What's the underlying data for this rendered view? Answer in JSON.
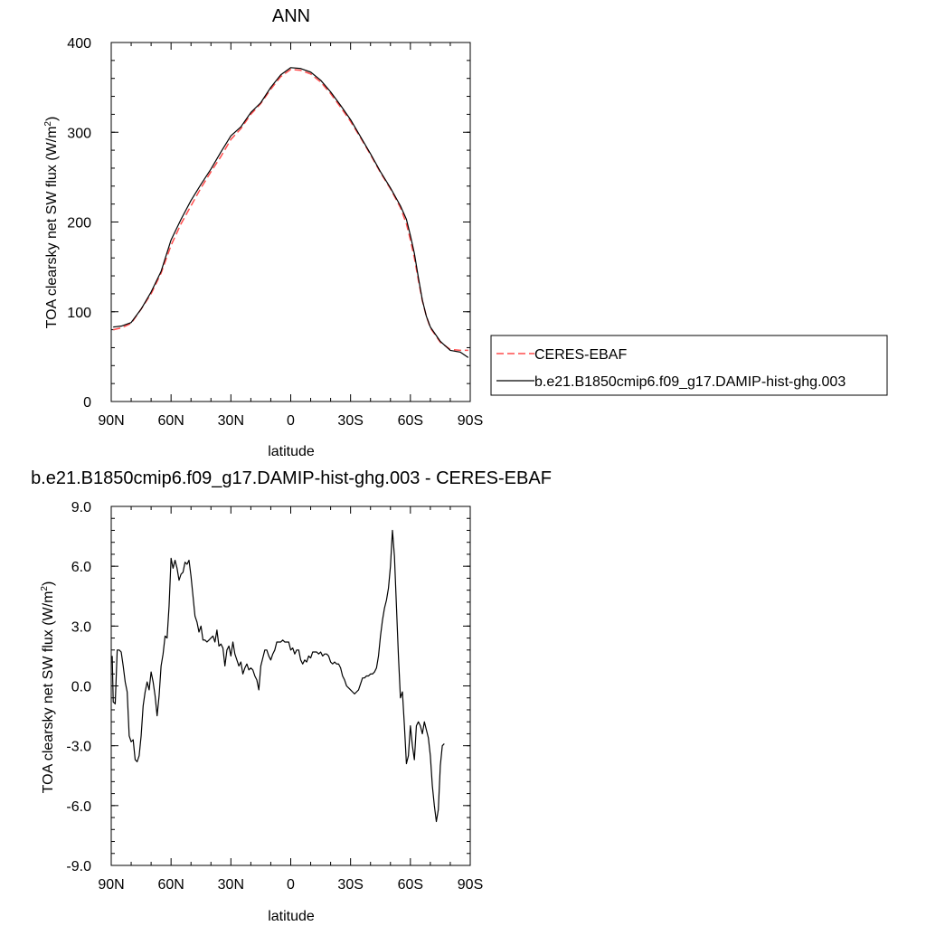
{
  "chart_data": [
    {
      "type": "line",
      "title": "ANN",
      "xlabel": "latitude",
      "ylabel": "TOA clearsky net SW flux (W/m",
      "ylabel_sup": "2",
      "ylabel_end": ")",
      "xlim": [
        90,
        -90
      ],
      "ylim": [
        0,
        400
      ],
      "xticks": [
        {
          "v": 90,
          "label": "90N"
        },
        {
          "v": 60,
          "label": "60N"
        },
        {
          "v": 30,
          "label": "30N"
        },
        {
          "v": 0,
          "label": "0"
        },
        {
          "v": -30,
          "label": "30S"
        },
        {
          "v": -60,
          "label": "60S"
        },
        {
          "v": -90,
          "label": "90S"
        }
      ],
      "yticks": [
        {
          "v": 0,
          "label": "0"
        },
        {
          "v": 100,
          "label": "100"
        },
        {
          "v": 200,
          "label": "200"
        },
        {
          "v": 300,
          "label": "300"
        },
        {
          "v": 400,
          "label": "400"
        }
      ],
      "legend_position": "right",
      "series": [
        {
          "name": "CERES-EBAF",
          "color": "#ff4d4d",
          "dash": true,
          "points": [
            [
              89,
              80
            ],
            [
              85,
              82
            ],
            [
              80,
              87
            ],
            [
              75,
              103
            ],
            [
              70,
              120
            ],
            [
              65,
              143
            ],
            [
              60,
              174
            ],
            [
              55,
              198
            ],
            [
              50,
              218
            ],
            [
              45,
              238
            ],
            [
              40,
              256
            ],
            [
              35,
              273
            ],
            [
              30,
              292
            ],
            [
              25,
              304
            ],
            [
              20,
              320
            ],
            [
              15,
              332
            ],
            [
              10,
              348
            ],
            [
              5,
              362
            ],
            [
              0,
              370
            ],
            [
              -5,
              369
            ],
            [
              -10,
              365
            ],
            [
              -15,
              356
            ],
            [
              -20,
              343
            ],
            [
              -25,
              328
            ],
            [
              -30,
              312
            ],
            [
              -35,
              294
            ],
            [
              -40,
              275
            ],
            [
              -45,
              255
            ],
            [
              -50,
              237
            ],
            [
              -55,
              216
            ],
            [
              -58,
              198
            ],
            [
              -60,
              180
            ],
            [
              -62,
              160
            ],
            [
              -64,
              135
            ],
            [
              -66,
              112
            ],
            [
              -68,
              95
            ],
            [
              -70,
              82
            ],
            [
              -75,
              66
            ],
            [
              -80,
              58
            ],
            [
              -85,
              57
            ],
            [
              -89,
              57
            ]
          ]
        },
        {
          "name": "b.e21.B1850cmip6.f09_g17.DAMIP-hist-ghg.003",
          "color": "#000000",
          "dash": false,
          "points": [
            [
              89,
              83
            ],
            [
              85,
              84
            ],
            [
              80,
              88
            ],
            [
              75,
              103
            ],
            [
              70,
              122
            ],
            [
              65,
              145
            ],
            [
              60,
              180
            ],
            [
              55,
              203
            ],
            [
              50,
              224
            ],
            [
              45,
              242
            ],
            [
              40,
              259
            ],
            [
              35,
              278
            ],
            [
              30,
              296
            ],
            [
              25,
              306
            ],
            [
              20,
              322
            ],
            [
              15,
              333
            ],
            [
              10,
              350
            ],
            [
              5,
              364
            ],
            [
              0,
              372
            ],
            [
              -5,
              371
            ],
            [
              -10,
              367
            ],
            [
              -15,
              358
            ],
            [
              -20,
              345
            ],
            [
              -25,
              330
            ],
            [
              -30,
              314
            ],
            [
              -35,
              295
            ],
            [
              -40,
              276
            ],
            [
              -45,
              256
            ],
            [
              -50,
              238
            ],
            [
              -55,
              218
            ],
            [
              -58,
              203
            ],
            [
              -60,
              185
            ],
            [
              -62,
              165
            ],
            [
              -64,
              138
            ],
            [
              -66,
              113
            ],
            [
              -68,
              95
            ],
            [
              -70,
              83
            ],
            [
              -75,
              67
            ],
            [
              -80,
              57
            ],
            [
              -85,
              55
            ],
            [
              -89,
              49
            ]
          ]
        }
      ]
    },
    {
      "type": "line",
      "title": "b.e21.B1850cmip6.f09_g17.DAMIP-hist-ghg.003 - CERES-EBAF",
      "xlabel": "latitude",
      "ylabel": "TOA clearsky net SW flux (W/m",
      "ylabel_sup": "2",
      "ylabel_end": ")",
      "xlim": [
        90,
        -90
      ],
      "ylim": [
        -9,
        9
      ],
      "xticks": [
        {
          "v": 90,
          "label": "90N"
        },
        {
          "v": 60,
          "label": "60N"
        },
        {
          "v": 30,
          "label": "30N"
        },
        {
          "v": 0,
          "label": "0"
        },
        {
          "v": -30,
          "label": "30S"
        },
        {
          "v": -60,
          "label": "60S"
        },
        {
          "v": -90,
          "label": "90S"
        }
      ],
      "yticks": [
        {
          "v": -9,
          "label": "-9.0"
        },
        {
          "v": -6,
          "label": "-6.0"
        },
        {
          "v": -3,
          "label": "-3.0"
        },
        {
          "v": 0,
          "label": "0.0"
        },
        {
          "v": 3,
          "label": "3.0"
        },
        {
          "v": 6,
          "label": "6.0"
        },
        {
          "v": 9,
          "label": "9.0"
        }
      ],
      "series": [
        {
          "name": "",
          "color": "#000000",
          "dash": false,
          "points": [
            [
              89.5,
              1.5
            ],
            [
              89,
              -0.8
            ],
            [
              88,
              -0.9
            ],
            [
              87,
              1.8
            ],
            [
              86,
              1.8
            ],
            [
              85,
              1.7
            ],
            [
              84,
              1.0
            ],
            [
              83,
              0.2
            ],
            [
              82,
              -0.3
            ],
            [
              81,
              -2.5
            ],
            [
              80,
              -2.8
            ],
            [
              79,
              -2.7
            ],
            [
              78,
              -3.7
            ],
            [
              77,
              -3.8
            ],
            [
              76,
              -3.5
            ],
            [
              75,
              -2.5
            ],
            [
              74,
              -1.0
            ],
            [
              73,
              -0.3
            ],
            [
              72,
              0.2
            ],
            [
              71,
              -0.2
            ],
            [
              70,
              0.7
            ],
            [
              69,
              0.2
            ],
            [
              68,
              -0.5
            ],
            [
              67,
              -1.5
            ],
            [
              66,
              -0.5
            ],
            [
              65,
              1.0
            ],
            [
              64,
              1.6
            ],
            [
              63,
              2.5
            ],
            [
              62,
              2.4
            ],
            [
              61,
              4.0
            ],
            [
              60,
              6.4
            ],
            [
              59,
              5.9
            ],
            [
              58,
              6.3
            ],
            [
              57,
              5.9
            ],
            [
              56,
              5.3
            ],
            [
              55,
              5.6
            ],
            [
              54,
              5.7
            ],
            [
              53,
              6.2
            ],
            [
              52,
              6.1
            ],
            [
              51,
              6.3
            ],
            [
              50,
              5.5
            ],
            [
              49,
              4.5
            ],
            [
              48,
              3.5
            ],
            [
              47,
              3.2
            ],
            [
              46,
              2.7
            ],
            [
              45,
              3.0
            ],
            [
              44,
              2.3
            ],
            [
              43,
              2.3
            ],
            [
              42,
              2.2
            ],
            [
              41,
              2.3
            ],
            [
              40,
              2.4
            ],
            [
              39,
              2.5
            ],
            [
              38,
              2.2
            ],
            [
              37,
              2.8
            ],
            [
              36,
              2.0
            ],
            [
              35,
              2.1
            ],
            [
              34,
              1.9
            ],
            [
              33,
              1.0
            ],
            [
              32,
              1.8
            ],
            [
              31,
              2.0
            ],
            [
              30,
              1.5
            ],
            [
              29,
              2.2
            ],
            [
              28,
              1.6
            ],
            [
              27,
              1.3
            ],
            [
              26,
              1.0
            ],
            [
              25,
              1.2
            ],
            [
              24,
              0.6
            ],
            [
              23,
              0.9
            ],
            [
              22,
              1.1
            ],
            [
              21,
              0.8
            ],
            [
              20,
              0.9
            ],
            [
              19,
              0.8
            ],
            [
              18,
              0.5
            ],
            [
              17,
              0.3
            ],
            [
              16,
              -0.2
            ],
            [
              15,
              1.0
            ],
            [
              14,
              1.4
            ],
            [
              13,
              1.8
            ],
            [
              12,
              1.8
            ],
            [
              11,
              1.5
            ],
            [
              10,
              1.3
            ],
            [
              9,
              1.6
            ],
            [
              8,
              1.8
            ],
            [
              7,
              2.2
            ],
            [
              6,
              2.2
            ],
            [
              5,
              2.2
            ],
            [
              4,
              2.3
            ],
            [
              3,
              2.2
            ],
            [
              2,
              2.2
            ],
            [
              1,
              2.2
            ],
            [
              0,
              1.8
            ],
            [
              -1,
              1.9
            ],
            [
              -2,
              1.6
            ],
            [
              -3,
              1.8
            ],
            [
              -4,
              1.8
            ],
            [
              -5,
              1.3
            ],
            [
              -6,
              1.1
            ],
            [
              -7,
              1.3
            ],
            [
              -8,
              1.2
            ],
            [
              -9,
              1.5
            ],
            [
              -10,
              1.4
            ],
            [
              -11,
              1.7
            ],
            [
              -12,
              1.7
            ],
            [
              -13,
              1.7
            ],
            [
              -14,
              1.6
            ],
            [
              -15,
              1.7
            ],
            [
              -16,
              1.5
            ],
            [
              -17,
              1.6
            ],
            [
              -18,
              1.6
            ],
            [
              -19,
              1.5
            ],
            [
              -20,
              1.2
            ],
            [
              -21,
              1.1
            ],
            [
              -22,
              1.2
            ],
            [
              -23,
              1.1
            ],
            [
              -24,
              1.1
            ],
            [
              -25,
              0.9
            ],
            [
              -26,
              0.5
            ],
            [
              -27,
              0.3
            ],
            [
              -28,
              0.0
            ],
            [
              -29,
              -0.1
            ],
            [
              -30,
              -0.2
            ],
            [
              -31,
              -0.3
            ],
            [
              -32,
              -0.4
            ],
            [
              -33,
              -0.3
            ],
            [
              -34,
              -0.2
            ],
            [
              -35,
              0.1
            ],
            [
              -36,
              0.4
            ],
            [
              -37,
              0.4
            ],
            [
              -38,
              0.5
            ],
            [
              -39,
              0.5
            ],
            [
              -40,
              0.6
            ],
            [
              -41,
              0.6
            ],
            [
              -42,
              0.7
            ],
            [
              -43,
              0.9
            ],
            [
              -44,
              1.5
            ],
            [
              -45,
              2.5
            ],
            [
              -46,
              3.3
            ],
            [
              -47,
              3.9
            ],
            [
              -48,
              4.3
            ],
            [
              -49,
              4.9
            ],
            [
              -50,
              6.0
            ],
            [
              -51,
              7.8
            ],
            [
              -52,
              6.5
            ],
            [
              -53,
              4.0
            ],
            [
              -54,
              1.5
            ],
            [
              -55,
              -0.6
            ],
            [
              -56,
              -0.3
            ],
            [
              -57,
              -2.0
            ],
            [
              -58,
              -3.9
            ],
            [
              -59,
              -3.5
            ],
            [
              -60,
              -2.0
            ],
            [
              -61,
              -3.0
            ],
            [
              -62,
              -3.7
            ],
            [
              -63,
              -2.0
            ],
            [
              -64,
              -1.8
            ],
            [
              -65,
              -2.0
            ],
            [
              -66,
              -2.4
            ],
            [
              -67,
              -1.8
            ],
            [
              -68,
              -2.2
            ],
            [
              -69,
              -2.6
            ],
            [
              -70,
              -3.5
            ],
            [
              -71,
              -5.0
            ],
            [
              -72,
              -6.0
            ],
            [
              -73,
              -6.8
            ],
            [
              -74,
              -6.2
            ],
            [
              -75,
              -4.0
            ],
            [
              -76,
              -3.0
            ],
            [
              -77,
              -2.9
            ]
          ]
        }
      ]
    }
  ]
}
